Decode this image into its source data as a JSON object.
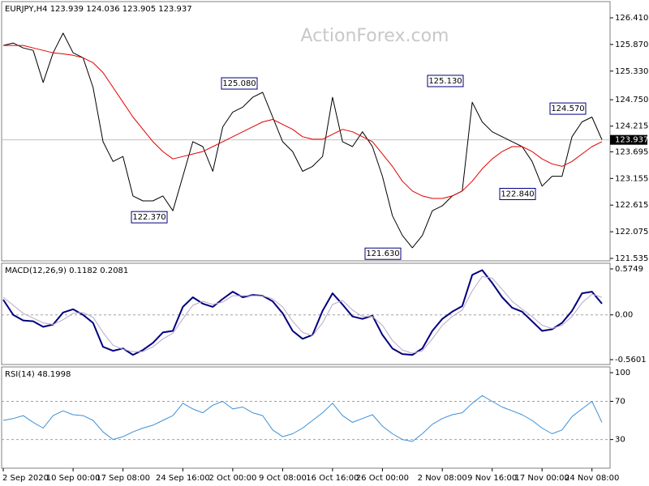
{
  "chart_data": [
    {
      "type": "line",
      "title": "EURJPY,H4  123.939 124.036 123.905 123.937",
      "watermark": "ActionForex.com",
      "series": [
        {
          "color": "#000000",
          "values": [
            125.85,
            125.9,
            125.8,
            125.75,
            125.1,
            125.7,
            126.1,
            125.7,
            125.6,
            125.0,
            123.9,
            123.5,
            123.6,
            122.8,
            122.7,
            122.7,
            122.8,
            122.5,
            123.2,
            123.9,
            123.8,
            123.3,
            124.2,
            124.5,
            124.6,
            124.8,
            124.9,
            124.4,
            123.9,
            123.7,
            123.3,
            123.4,
            123.6,
            124.8,
            123.9,
            123.8,
            124.1,
            123.8,
            123.2,
            122.4,
            122.0,
            121.75,
            122.0,
            122.5,
            122.6,
            122.8,
            122.9,
            124.7,
            124.3,
            124.1,
            124.0,
            123.9,
            123.8,
            123.5,
            123.0,
            123.2,
            123.2,
            124.0,
            124.3,
            124.4,
            123.94
          ]
        },
        {
          "color": "#e00000",
          "values": [
            125.85,
            125.85,
            125.85,
            125.8,
            125.75,
            125.7,
            125.68,
            125.65,
            125.6,
            125.5,
            125.3,
            125.0,
            124.7,
            124.4,
            124.15,
            123.9,
            123.7,
            123.55,
            123.6,
            123.65,
            123.7,
            123.8,
            123.9,
            124.0,
            124.1,
            124.2,
            124.3,
            124.35,
            124.25,
            124.15,
            124.0,
            123.95,
            123.95,
            124.05,
            124.15,
            124.1,
            124.0,
            123.9,
            123.65,
            123.4,
            123.1,
            122.9,
            122.8,
            122.75,
            122.75,
            122.8,
            122.9,
            123.1,
            123.35,
            123.55,
            123.7,
            123.8,
            123.8,
            123.7,
            123.55,
            123.45,
            123.4,
            123.5,
            123.65,
            123.8,
            123.9
          ]
        }
      ],
      "ylim": [
        121.486,
        126.738
      ],
      "yticks": [
        {
          "value": 126.41,
          "label": "126.410"
        },
        {
          "value": 125.87,
          "label": "125.870"
        },
        {
          "value": 125.33,
          "label": "125.330"
        },
        {
          "value": 124.75,
          "label": "124.750"
        },
        {
          "value": 124.215,
          "label": "124.215"
        },
        {
          "value": 123.695,
          "label": "123.695"
        },
        {
          "value": 123.155,
          "label": "123.155"
        },
        {
          "value": 122.615,
          "label": "122.615"
        },
        {
          "value": 122.075,
          "label": "122.075"
        },
        {
          "value": 121.535,
          "label": "121.535"
        }
      ],
      "last_price": {
        "value": 123.937,
        "label": "123.937"
      },
      "annotations": [
        {
          "value": 125.08,
          "label": "125.080"
        },
        {
          "value": 122.37,
          "label": "122.370"
        },
        {
          "value": 125.13,
          "label": "125.130"
        },
        {
          "value": 121.63,
          "label": "121.630"
        },
        {
          "value": 124.57,
          "label": "124.570"
        },
        {
          "value": 122.84,
          "label": "122.840"
        }
      ]
    },
    {
      "type": "line",
      "title": "MACD(12,26,9) 0.1182 0.2081",
      "series": [
        {
          "color": "#000080",
          "values": [
            0.19,
            0.0,
            -0.07,
            -0.08,
            -0.15,
            -0.12,
            0.03,
            0.07,
            0.0,
            -0.1,
            -0.4,
            -0.45,
            -0.42,
            -0.5,
            -0.44,
            -0.35,
            -0.22,
            -0.2,
            0.1,
            0.22,
            0.14,
            0.1,
            0.2,
            0.29,
            0.22,
            0.25,
            0.24,
            0.17,
            0.02,
            -0.2,
            -0.3,
            -0.25,
            0.05,
            0.27,
            0.13,
            -0.02,
            -0.05,
            -0.01,
            -0.25,
            -0.42,
            -0.49,
            -0.5,
            -0.42,
            -0.2,
            -0.05,
            0.04,
            0.11,
            0.5,
            0.56,
            0.4,
            0.22,
            0.09,
            0.04,
            -0.08,
            -0.2,
            -0.18,
            -0.1,
            0.05,
            0.27,
            0.29,
            0.14
          ]
        },
        {
          "color": "#b8a8c8",
          "values": [
            0.22,
            0.12,
            0.02,
            -0.04,
            -0.1,
            -0.12,
            -0.06,
            0.02,
            0.03,
            -0.03,
            -0.22,
            -0.38,
            -0.43,
            -0.46,
            -0.46,
            -0.4,
            -0.3,
            -0.23,
            -0.05,
            0.12,
            0.17,
            0.13,
            0.16,
            0.24,
            0.24,
            0.24,
            0.24,
            0.2,
            0.1,
            -0.08,
            -0.22,
            -0.26,
            -0.1,
            0.13,
            0.18,
            0.06,
            -0.02,
            -0.02,
            -0.13,
            -0.32,
            -0.44,
            -0.48,
            -0.45,
            -0.3,
            -0.13,
            -0.02,
            0.06,
            0.3,
            0.48,
            0.46,
            0.32,
            0.17,
            0.07,
            -0.02,
            -0.13,
            -0.17,
            -0.13,
            -0.02,
            0.15,
            0.26,
            0.22
          ]
        }
      ],
      "ylim": [
        -0.621,
        0.646
      ],
      "yticks": [
        0.5749,
        {
          "value": 0,
          "label": "0.00"
        },
        -0.5601
      ],
      "levels": [
        0
      ]
    },
    {
      "type": "line",
      "title": "RSI(14) 48.1998",
      "categories": [
        "2 Sep 2020",
        null,
        null,
        null,
        null,
        null,
        null,
        "10 Sep 00:00",
        null,
        null,
        null,
        null,
        "17 Sep 08:00",
        null,
        null,
        null,
        null,
        null,
        "24 Sep 16:00",
        null,
        null,
        null,
        null,
        "2 Oct 00:00",
        null,
        null,
        null,
        null,
        "9 Oct 08:00",
        null,
        null,
        null,
        null,
        "16 Oct 16:00",
        null,
        null,
        null,
        null,
        "26 Oct 00:00",
        null,
        null,
        null,
        null,
        null,
        "2 Nov 08:00",
        null,
        null,
        null,
        null,
        "9 Nov 16:00",
        null,
        null,
        null,
        null,
        "17 Nov 00:00",
        null,
        null,
        null,
        null,
        "24 Nov 08:00",
        null
      ],
      "series": [
        {
          "color": "#3d8fd6",
          "values": [
            50,
            52,
            55,
            48,
            42,
            55,
            60,
            56,
            55,
            50,
            38,
            30,
            33,
            38,
            42,
            45,
            50,
            55,
            68,
            62,
            58,
            66,
            70,
            62,
            64,
            58,
            55,
            40,
            33,
            36,
            42,
            50,
            58,
            68,
            55,
            48,
            52,
            56,
            44,
            36,
            30,
            28,
            36,
            46,
            52,
            56,
            58,
            68,
            76,
            70,
            64,
            60,
            56,
            50,
            42,
            36,
            40,
            54,
            62,
            70,
            48
          ]
        }
      ],
      "ylim": [
        0,
        106
      ],
      "yticks": [
        100,
        70,
        30
      ],
      "levels": [
        70,
        30
      ]
    }
  ]
}
